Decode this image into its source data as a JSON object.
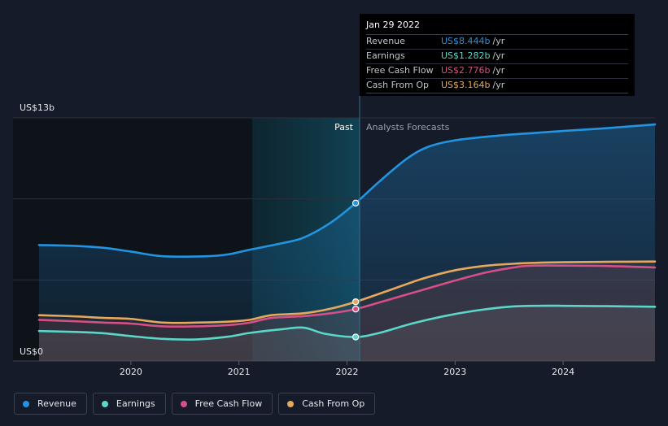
{
  "chart_data": {
    "type": "line",
    "y_axis": {
      "top_label": "US$13b",
      "bottom_label": "US$0",
      "ylim": [
        0,
        13
      ]
    },
    "x_axis": {
      "tick_labels": [
        "2020",
        "2021",
        "2022",
        "2023",
        "2024"
      ],
      "xlim": [
        2019.15,
        2024.85
      ]
    },
    "regions": {
      "past_label": "Past",
      "forecast_label": "Analysts Forecasts",
      "divider_x": 2022.08
    },
    "series": [
      {
        "name": "Revenue",
        "color": "#2394df",
        "x": [
          2019.15,
          2019.5,
          2019.75,
          2020.0,
          2020.3,
          2020.7,
          2020.9,
          2021.1,
          2021.4,
          2021.6,
          2021.85,
          2022.08,
          2022.3,
          2022.55,
          2022.75,
          2023.0,
          2023.4,
          2023.75,
          2024.0,
          2024.4,
          2024.85
        ],
        "values": [
          6.2,
          6.15,
          6.05,
          5.85,
          5.6,
          5.6,
          5.7,
          5.95,
          6.3,
          6.6,
          7.4,
          8.444,
          9.6,
          10.8,
          11.45,
          11.8,
          12.05,
          12.2,
          12.3,
          12.45,
          12.65
        ]
      },
      {
        "name": "Earnings",
        "color": "#5bd6c8",
        "x": [
          2019.15,
          2019.5,
          2019.75,
          2020.0,
          2020.3,
          2020.6,
          2020.9,
          2021.1,
          2021.4,
          2021.6,
          2021.8,
          2022.08,
          2022.3,
          2022.6,
          2022.9,
          2023.2,
          2023.5,
          2023.75,
          2024.0,
          2024.4,
          2024.85
        ],
        "values": [
          1.6,
          1.55,
          1.48,
          1.33,
          1.18,
          1.15,
          1.3,
          1.5,
          1.7,
          1.78,
          1.45,
          1.282,
          1.5,
          2.0,
          2.4,
          2.7,
          2.9,
          2.95,
          2.95,
          2.93,
          2.9
        ]
      },
      {
        "name": "Free Cash Flow",
        "color": "#d64f86",
        "x": [
          2019.15,
          2019.5,
          2019.75,
          2020.0,
          2020.3,
          2020.6,
          2020.9,
          2021.1,
          2021.3,
          2021.6,
          2021.85,
          2022.08,
          2022.4,
          2022.7,
          2023.0,
          2023.3,
          2023.6,
          2023.75,
          2024.0,
          2024.4,
          2024.85
        ],
        "values": [
          2.2,
          2.12,
          2.05,
          2.0,
          1.85,
          1.85,
          1.92,
          2.05,
          2.3,
          2.4,
          2.55,
          2.776,
          3.3,
          3.8,
          4.3,
          4.75,
          5.05,
          5.1,
          5.1,
          5.08,
          5.0
        ]
      },
      {
        "name": "Cash From Op",
        "color": "#e6a95c",
        "x": [
          2019.15,
          2019.5,
          2019.75,
          2020.0,
          2020.3,
          2020.6,
          2020.9,
          2021.1,
          2021.3,
          2021.6,
          2021.85,
          2022.08,
          2022.4,
          2022.7,
          2023.0,
          2023.3,
          2023.6,
          2023.75,
          2024.0,
          2024.4,
          2024.85
        ],
        "values": [
          2.45,
          2.38,
          2.3,
          2.25,
          2.05,
          2.05,
          2.1,
          2.2,
          2.45,
          2.55,
          2.8,
          3.164,
          3.8,
          4.4,
          4.85,
          5.1,
          5.22,
          5.25,
          5.28,
          5.3,
          5.32
        ]
      }
    ],
    "highlight_x": 2022.08
  },
  "tooltip": {
    "date": "Jan 29 2022",
    "rows": [
      {
        "name": "Revenue",
        "value": "US$8.444b",
        "unit": "/yr",
        "color": "#2394df"
      },
      {
        "name": "Earnings",
        "value": "US$1.282b",
        "unit": "/yr",
        "color": "#5bd6c8"
      },
      {
        "name": "Free Cash Flow",
        "value": "US$2.776b",
        "unit": "/yr",
        "color": "#d64f86"
      },
      {
        "name": "Cash From Op",
        "value": "US$3.164b",
        "unit": "/yr",
        "color": "#e6a95c"
      }
    ]
  },
  "legend": [
    {
      "label": "Revenue",
      "color": "#2394df"
    },
    {
      "label": "Earnings",
      "color": "#5bd6c8"
    },
    {
      "label": "Free Cash Flow",
      "color": "#d64f86"
    },
    {
      "label": "Cash From Op",
      "color": "#e6a95c"
    }
  ]
}
